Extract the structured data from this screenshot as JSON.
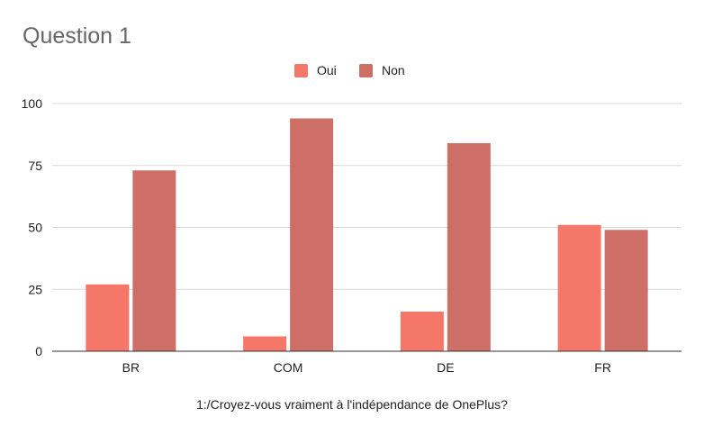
{
  "chart_data": {
    "type": "bar",
    "title": "Question 1",
    "xlabel": "1:/Croyez-vous vraiment à l'indépendance de OnePlus?",
    "ylabel": "",
    "categories": [
      "BR",
      "COM",
      "DE",
      "FR"
    ],
    "series": [
      {
        "name": "Oui",
        "values": [
          27,
          6,
          16,
          51
        ],
        "color": "#f4776a"
      },
      {
        "name": "Non",
        "values": [
          73,
          94,
          84,
          49
        ],
        "color": "#cd6e67"
      }
    ],
    "ylim": [
      0,
      100
    ],
    "yticks": [
      "0",
      "25",
      "50",
      "75",
      "100"
    ],
    "grid": true,
    "legend_position": "top-center"
  }
}
